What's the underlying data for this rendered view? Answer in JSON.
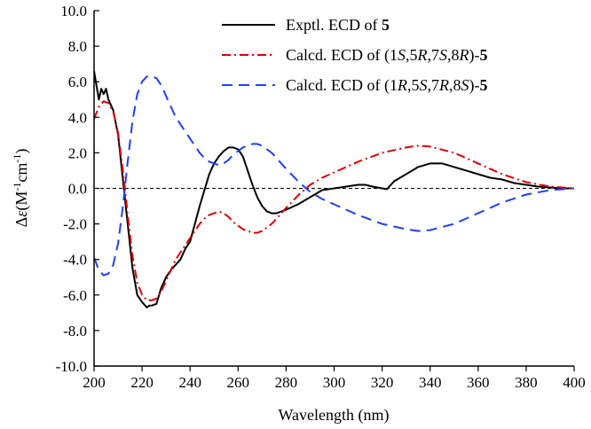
{
  "chart_data": {
    "type": "line",
    "xlabel": "Wavelength (nm)",
    "ylabel": "Δε(M-1cm-1)",
    "xlim": [
      200,
      400
    ],
    "ylim": [
      -10,
      10
    ],
    "x_ticks": [
      "200",
      "220",
      "240",
      "260",
      "280",
      "300",
      "320",
      "340",
      "360",
      "380",
      "400"
    ],
    "y_ticks": [
      "10.0",
      "8.0",
      "6.0",
      "4.0",
      "2.0",
      "0.0",
      "-2.0",
      "-4.0",
      "-6.0",
      "-8.0",
      "-10.0"
    ],
    "zero_line": true,
    "legend_position": "top-right",
    "series": [
      {
        "name": "Exptl. ECD of 5",
        "color": "#000000",
        "style": "solid",
        "legend": [
          {
            "text": "Exptl. ECD of "
          },
          {
            "text": "5",
            "bold": true
          }
        ],
        "x": [
          200,
          202,
          203,
          204,
          205,
          206,
          208,
          210,
          212,
          214,
          216,
          218,
          220,
          222,
          223,
          224,
          226,
          228,
          230,
          232,
          234,
          236,
          238,
          240,
          242,
          244,
          246,
          248,
          250,
          252,
          254,
          256,
          258,
          260,
          262,
          264,
          266,
          268,
          270,
          272,
          274,
          276,
          278,
          280,
          285,
          290,
          295,
          300,
          305,
          310,
          313,
          316,
          318,
          320,
          322,
          325,
          330,
          335,
          340,
          345,
          350,
          355,
          360,
          365,
          370,
          375,
          380,
          385,
          390,
          395,
          400
        ],
        "y": [
          6.6,
          5.0,
          5.6,
          5.3,
          5.6,
          5.0,
          4.4,
          3.0,
          0.5,
          -2.0,
          -4.5,
          -6.0,
          -6.4,
          -6.7,
          -6.6,
          -6.6,
          -6.5,
          -5.6,
          -5.0,
          -4.6,
          -4.3,
          -4.0,
          -3.4,
          -3.0,
          -2.0,
          -1.0,
          -0.1,
          0.8,
          1.4,
          1.8,
          2.1,
          2.3,
          2.3,
          2.2,
          1.8,
          1.0,
          0.2,
          -0.5,
          -1.0,
          -1.3,
          -1.4,
          -1.4,
          -1.3,
          -1.2,
          -0.9,
          -0.5,
          -0.1,
          0.0,
          0.1,
          0.2,
          0.2,
          0.1,
          0.05,
          0.0,
          -0.05,
          0.4,
          0.8,
          1.2,
          1.4,
          1.4,
          1.2,
          1.0,
          0.8,
          0.6,
          0.5,
          0.3,
          0.2,
          0.1,
          0.05,
          0.0,
          0.0
        ]
      },
      {
        "name": "Calcd. ECD of (1S,5R,7S,8R)-5",
        "color": "#e00000",
        "style": "dashdot",
        "legend": [
          {
            "text": "Calcd. ECD of (1"
          },
          {
            "text": "S",
            "italic": true
          },
          {
            "text": ",5"
          },
          {
            "text": "R",
            "italic": true
          },
          {
            "text": ",7"
          },
          {
            "text": "S",
            "italic": true
          },
          {
            "text": ",8"
          },
          {
            "text": "R",
            "italic": true
          },
          {
            "text": ")-"
          },
          {
            "text": "5",
            "bold": true
          }
        ],
        "x": [
          200,
          202,
          204,
          206,
          208,
          210,
          212,
          214,
          216,
          218,
          220,
          222,
          224,
          226,
          228,
          230,
          232,
          234,
          236,
          238,
          240,
          242,
          244,
          246,
          248,
          250,
          252,
          254,
          256,
          258,
          260,
          262,
          264,
          266,
          268,
          270,
          272,
          274,
          276,
          278,
          280,
          285,
          290,
          295,
          300,
          310,
          320,
          330,
          335,
          340,
          350,
          360,
          370,
          380,
          390,
          400
        ],
        "y": [
          3.9,
          4.6,
          4.9,
          4.8,
          4.3,
          3.1,
          1.0,
          -1.5,
          -3.8,
          -5.3,
          -6.0,
          -6.3,
          -6.3,
          -6.2,
          -5.8,
          -5.2,
          -4.6,
          -4.0,
          -3.6,
          -3.2,
          -2.8,
          -2.4,
          -2.0,
          -1.7,
          -1.5,
          -1.4,
          -1.3,
          -1.4,
          -1.6,
          -1.9,
          -2.1,
          -2.3,
          -2.4,
          -2.5,
          -2.5,
          -2.4,
          -2.2,
          -2.0,
          -1.7,
          -1.4,
          -1.1,
          -0.4,
          0.2,
          0.6,
          0.9,
          1.5,
          2.0,
          2.3,
          2.4,
          2.35,
          2.0,
          1.4,
          0.8,
          0.35,
          0.1,
          0.0
        ]
      },
      {
        "name": "Calcd. ECD of (1R,5S,7R,8S)-5",
        "color": "#1f3fff",
        "style": "dashed",
        "legend": [
          {
            "text": "Calcd. ECD of (1"
          },
          {
            "text": "R",
            "italic": true
          },
          {
            "text": ",5"
          },
          {
            "text": "S",
            "italic": true
          },
          {
            "text": ",7"
          },
          {
            "text": "R",
            "italic": true
          },
          {
            "text": ",8"
          },
          {
            "text": "S",
            "italic": true
          },
          {
            "text": ")-"
          },
          {
            "text": "5",
            "bold": true
          }
        ],
        "x": [
          200,
          202,
          204,
          206,
          208,
          210,
          212,
          214,
          216,
          218,
          220,
          222,
          224,
          226,
          228,
          230,
          232,
          234,
          236,
          238,
          240,
          242,
          244,
          246,
          248,
          250,
          252,
          254,
          256,
          258,
          260,
          262,
          264,
          266,
          268,
          270,
          272,
          274,
          276,
          278,
          280,
          285,
          290,
          295,
          300,
          310,
          320,
          330,
          335,
          340,
          350,
          360,
          370,
          380,
          390,
          400
        ],
        "y": [
          -3.9,
          -4.6,
          -4.9,
          -4.8,
          -4.3,
          -3.1,
          -1.0,
          1.5,
          3.8,
          5.3,
          6.0,
          6.3,
          6.3,
          6.2,
          5.8,
          5.2,
          4.6,
          4.0,
          3.6,
          3.2,
          2.8,
          2.4,
          2.0,
          1.7,
          1.5,
          1.4,
          1.3,
          1.4,
          1.6,
          1.9,
          2.1,
          2.3,
          2.4,
          2.5,
          2.5,
          2.4,
          2.2,
          2.0,
          1.7,
          1.4,
          1.1,
          0.4,
          -0.2,
          -0.6,
          -0.9,
          -1.5,
          -2.0,
          -2.3,
          -2.4,
          -2.35,
          -2.0,
          -1.4,
          -0.8,
          -0.35,
          -0.1,
          0.0
        ]
      }
    ]
  }
}
